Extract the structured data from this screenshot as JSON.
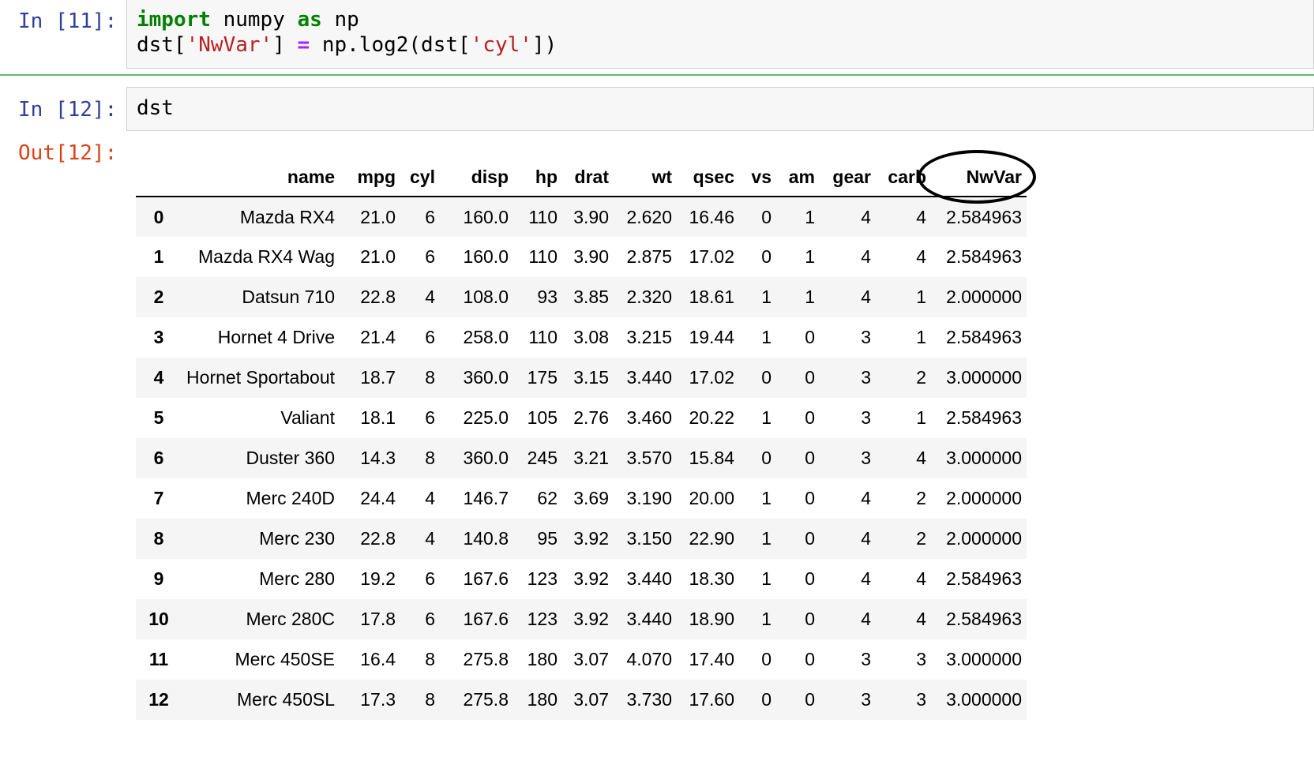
{
  "cells": [
    {
      "prompt": "In [11]:",
      "code": {
        "line1": {
          "kw1": "import",
          "mod": " numpy ",
          "kw2": "as",
          "alias": " np"
        },
        "line2": {
          "a": "dst[",
          "s1": "'NwVar'",
          "b": "] ",
          "op": "=",
          "c": " np.log2(dst[",
          "s2": "'cyl'",
          "d": "])"
        }
      }
    },
    {
      "prompt": "In [12]:",
      "code": "dst",
      "out_prompt": "Out[12]:"
    }
  ],
  "table": {
    "columns": [
      "",
      "name",
      "mpg",
      "cyl",
      "disp",
      "hp",
      "drat",
      "wt",
      "qsec",
      "vs",
      "am",
      "gear",
      "carb",
      "NwVar"
    ],
    "rows": [
      [
        "0",
        "Mazda RX4",
        "21.0",
        "6",
        "160.0",
        "110",
        "3.90",
        "2.620",
        "16.46",
        "0",
        "1",
        "4",
        "4",
        "2.584963"
      ],
      [
        "1",
        "Mazda RX4 Wag",
        "21.0",
        "6",
        "160.0",
        "110",
        "3.90",
        "2.875",
        "17.02",
        "0",
        "1",
        "4",
        "4",
        "2.584963"
      ],
      [
        "2",
        "Datsun 710",
        "22.8",
        "4",
        "108.0",
        "93",
        "3.85",
        "2.320",
        "18.61",
        "1",
        "1",
        "4",
        "1",
        "2.000000"
      ],
      [
        "3",
        "Hornet 4 Drive",
        "21.4",
        "6",
        "258.0",
        "110",
        "3.08",
        "3.215",
        "19.44",
        "1",
        "0",
        "3",
        "1",
        "2.584963"
      ],
      [
        "4",
        "Hornet Sportabout",
        "18.7",
        "8",
        "360.0",
        "175",
        "3.15",
        "3.440",
        "17.02",
        "0",
        "0",
        "3",
        "2",
        "3.000000"
      ],
      [
        "5",
        "Valiant",
        "18.1",
        "6",
        "225.0",
        "105",
        "2.76",
        "3.460",
        "20.22",
        "1",
        "0",
        "3",
        "1",
        "2.584963"
      ],
      [
        "6",
        "Duster 360",
        "14.3",
        "8",
        "360.0",
        "245",
        "3.21",
        "3.570",
        "15.84",
        "0",
        "0",
        "3",
        "4",
        "3.000000"
      ],
      [
        "7",
        "Merc 240D",
        "24.4",
        "4",
        "146.7",
        "62",
        "3.69",
        "3.190",
        "20.00",
        "1",
        "0",
        "4",
        "2",
        "2.000000"
      ],
      [
        "8",
        "Merc 230",
        "22.8",
        "4",
        "140.8",
        "95",
        "3.92",
        "3.150",
        "22.90",
        "1",
        "0",
        "4",
        "2",
        "2.000000"
      ],
      [
        "9",
        "Merc 280",
        "19.2",
        "6",
        "167.6",
        "123",
        "3.92",
        "3.440",
        "18.30",
        "1",
        "0",
        "4",
        "4",
        "2.584963"
      ],
      [
        "10",
        "Merc 280C",
        "17.8",
        "6",
        "167.6",
        "123",
        "3.92",
        "3.440",
        "18.90",
        "1",
        "0",
        "4",
        "4",
        "2.584963"
      ],
      [
        "11",
        "Merc 450SE",
        "16.4",
        "8",
        "275.8",
        "180",
        "3.07",
        "4.070",
        "17.40",
        "0",
        "0",
        "3",
        "3",
        "3.000000"
      ],
      [
        "12",
        "Merc 450SL",
        "17.3",
        "8",
        "275.8",
        "180",
        "3.07",
        "3.730",
        "17.60",
        "0",
        "0",
        "3",
        "3",
        "3.000000"
      ]
    ]
  },
  "colors": {
    "prompt_in": "#303f9f",
    "prompt_out": "#d84315",
    "selected_cell_border": "#66bb6a",
    "keyword": "#008000",
    "string": "#ba2121",
    "operator": "#aa22ff"
  }
}
